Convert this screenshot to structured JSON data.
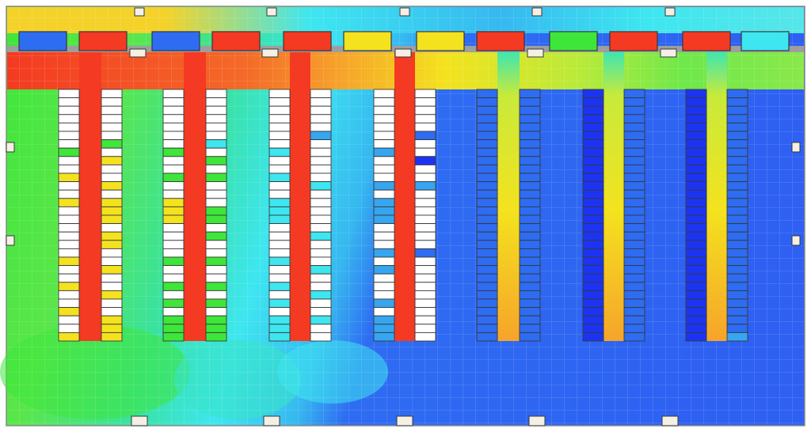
{
  "figure": {
    "kind": "cfd-thermal-map",
    "colors": {
      "red": "#f43a22",
      "orange": "#f6a42a",
      "yellow": "#f4e21e",
      "light_green": "#8ae84a",
      "green": "#3ee63a",
      "teal_green": "#38e2a2",
      "cyan": "#3ee6f0",
      "sky": "#36a6f0",
      "blue": "#2e6cf2",
      "navy": "#1c34f2",
      "grid": "#b6d0ee",
      "outline": "#383838",
      "wall": "#9e9e9e",
      "vent_face": "#f4f0e4"
    },
    "crac_units": [
      {
        "color": "blue"
      },
      {
        "color": "red"
      },
      {
        "color": "blue"
      },
      {
        "color": "red"
      },
      {
        "color": "red"
      },
      {
        "color": "yellow"
      },
      {
        "color": "yellow"
      },
      {
        "color": "red"
      },
      {
        "color": "green"
      },
      {
        "color": "red"
      },
      {
        "color": "red"
      },
      {
        "color": "cyan"
      }
    ],
    "rack_rows": [
      {
        "cells": [
          "white",
          "white",
          "white",
          "white",
          "white",
          "white",
          "white",
          "green",
          "white",
          "white",
          "yellow",
          "white",
          "white",
          "yellow",
          "white",
          "white",
          "white",
          "white",
          "white",
          "white",
          "yellow",
          "white",
          "white",
          "yellow",
          "white",
          "white",
          "yellow",
          "white",
          "white",
          "yellow"
        ],
        "plume": "red"
      },
      {
        "cells": [
          "white",
          "white",
          "white",
          "white",
          "white",
          "white",
          "green",
          "white",
          "yellow",
          "white",
          "white",
          "yellow",
          "white",
          "yellow",
          "yellow",
          "yellow",
          "white",
          "yellow",
          "yellow",
          "white",
          "white",
          "yellow",
          "white",
          "white",
          "yellow",
          "white",
          "white",
          "yellow",
          "yellow",
          "yellow"
        ],
        "plume": null
      },
      {
        "cells": [
          "white",
          "white",
          "white",
          "white",
          "white",
          "white",
          "white",
          "green",
          "white",
          "white",
          "green",
          "white",
          "white",
          "yellow",
          "yellow",
          "yellow",
          "white",
          "white",
          "white",
          "white",
          "green",
          "white",
          "white",
          "green",
          "white",
          "green",
          "white",
          "green",
          "green",
          "green"
        ],
        "plume": "red"
      },
      {
        "cells": [
          "white",
          "white",
          "white",
          "white",
          "white",
          "white",
          "cyan",
          "white",
          "green",
          "white",
          "green",
          "white",
          "white",
          "white",
          "green",
          "green",
          "white",
          "green",
          "white",
          "white",
          "green",
          "white",
          "white",
          "green",
          "white",
          "green",
          "white",
          "green",
          "green",
          "green"
        ],
        "plume": null
      },
      {
        "cells": [
          "white",
          "white",
          "white",
          "white",
          "white",
          "white",
          "white",
          "cyan",
          "white",
          "white",
          "cyan",
          "white",
          "white",
          "cyan",
          "cyan",
          "cyan",
          "white",
          "white",
          "white",
          "white",
          "cyan",
          "white",
          "white",
          "cyan",
          "white",
          "cyan",
          "white",
          "cyan",
          "cyan",
          "cyan"
        ],
        "plume": "red"
      },
      {
        "cells": [
          "white",
          "white",
          "white",
          "white",
          "white",
          "sky",
          "white",
          "white",
          "white",
          "white",
          "white",
          "cyan",
          "white",
          "white",
          "white",
          "white",
          "white",
          "cyan",
          "white",
          "white",
          "white",
          "cyan",
          "white",
          "white",
          "cyan",
          "white",
          "white",
          "cyan",
          "white",
          "white"
        ],
        "plume": null
      },
      {
        "cells": [
          "white",
          "white",
          "white",
          "white",
          "white",
          "white",
          "white",
          "sky",
          "white",
          "white",
          "white",
          "sky",
          "white",
          "sky",
          "sky",
          "sky",
          "white",
          "white",
          "white",
          "sky",
          "white",
          "sky",
          "white",
          "white",
          "white",
          "sky",
          "white",
          "sky",
          "sky",
          "sky"
        ],
        "plume": "red"
      },
      {
        "cells": [
          "white",
          "white",
          "white",
          "white",
          "white",
          "blue",
          "white",
          "white",
          "navy",
          "white",
          "white",
          "sky",
          "white",
          "white",
          "white",
          "white",
          "white",
          "white",
          "white",
          "blue",
          "white",
          "white",
          "white",
          "white",
          "white",
          "white",
          "white",
          "white",
          "white",
          "white"
        ],
        "plume": null
      },
      {
        "cells": [
          "blue",
          "blue",
          "blue",
          "blue",
          "blue",
          "blue",
          "blue",
          "blue",
          "blue",
          "blue",
          "blue",
          "blue",
          "blue",
          "blue",
          "blue",
          "blue",
          "blue",
          "blue",
          "blue",
          "blue",
          "blue",
          "blue",
          "blue",
          "blue",
          "blue",
          "blue",
          "blue",
          "blue",
          "blue",
          "blue"
        ],
        "plume": "warm"
      },
      {
        "cells": [
          "blue",
          "blue",
          "blue",
          "blue",
          "blue",
          "blue",
          "blue",
          "blue",
          "blue",
          "blue",
          "blue",
          "blue",
          "blue",
          "blue",
          "blue",
          "blue",
          "blue",
          "blue",
          "blue",
          "blue",
          "blue",
          "blue",
          "blue",
          "blue",
          "blue",
          "blue",
          "blue",
          "blue",
          "blue",
          "blue"
        ],
        "plume": null
      },
      {
        "cells": [
          "navy",
          "navy",
          "navy",
          "navy",
          "navy",
          "navy",
          "navy",
          "navy",
          "navy",
          "navy",
          "navy",
          "navy",
          "navy",
          "navy",
          "navy",
          "navy",
          "navy",
          "navy",
          "navy",
          "navy",
          "navy",
          "navy",
          "navy",
          "navy",
          "navy",
          "navy",
          "navy",
          "navy",
          "navy",
          "navy"
        ],
        "plume": "warm"
      },
      {
        "cells": [
          "blue",
          "blue",
          "blue",
          "blue",
          "blue",
          "blue",
          "blue",
          "blue",
          "blue",
          "blue",
          "blue",
          "blue",
          "blue",
          "blue",
          "blue",
          "blue",
          "blue",
          "blue",
          "blue",
          "blue",
          "blue",
          "blue",
          "blue",
          "blue",
          "blue",
          "blue",
          "blue",
          "blue",
          "blue",
          "blue"
        ],
        "plume": null
      },
      {
        "cells": [
          "navy",
          "navy",
          "navy",
          "navy",
          "navy",
          "navy",
          "navy",
          "navy",
          "navy",
          "navy",
          "navy",
          "navy",
          "navy",
          "navy",
          "navy",
          "navy",
          "navy",
          "navy",
          "navy",
          "navy",
          "navy",
          "navy",
          "navy",
          "navy",
          "navy",
          "navy",
          "navy",
          "navy",
          "navy",
          "navy"
        ],
        "plume": "warm"
      },
      {
        "cells": [
          "blue",
          "blue",
          "blue",
          "blue",
          "blue",
          "blue",
          "blue",
          "blue",
          "blue",
          "blue",
          "blue",
          "blue",
          "blue",
          "blue",
          "blue",
          "blue",
          "blue",
          "blue",
          "blue",
          "blue",
          "blue",
          "blue",
          "blue",
          "blue",
          "blue",
          "blue",
          "blue",
          "blue",
          "blue",
          "sky"
        ],
        "plume": null
      }
    ]
  }
}
